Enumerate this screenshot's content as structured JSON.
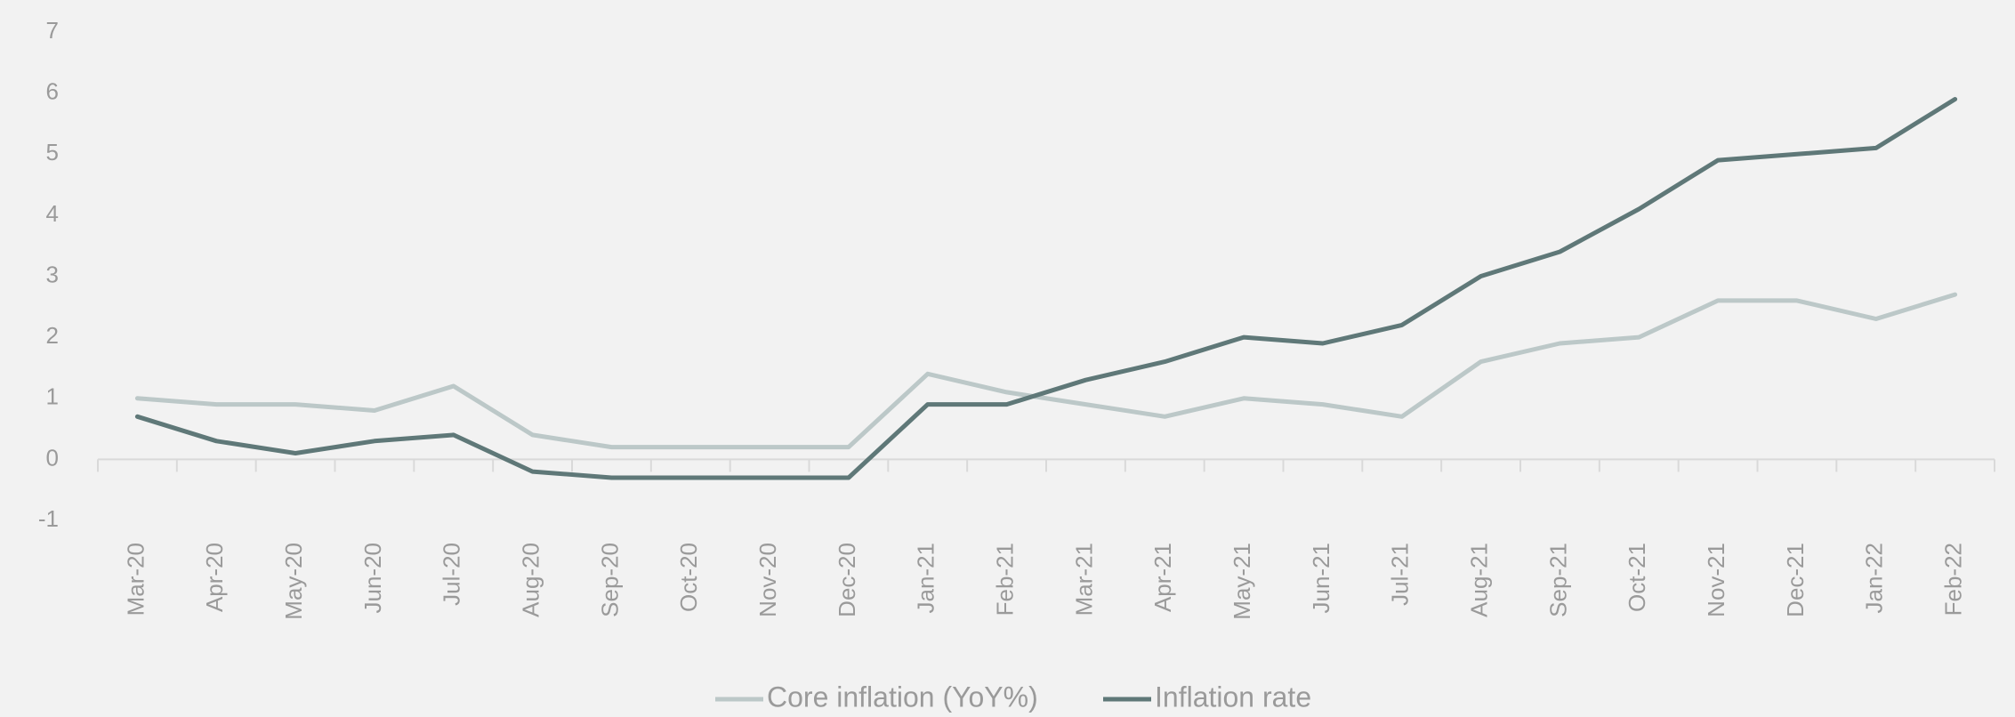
{
  "chart_data": {
    "type": "line",
    "categories": [
      "Mar-20",
      "Apr-20",
      "May-20",
      "Jun-20",
      "Jul-20",
      "Aug-20",
      "Sep-20",
      "Oct-20",
      "Nov-20",
      "Dec-20",
      "Jan-21",
      "Feb-21",
      "Mar-21",
      "Apr-21",
      "May-21",
      "Jun-21",
      "Jul-21",
      "Aug-21",
      "Sep-21",
      "Oct-21",
      "Nov-21",
      "Dec-21",
      "Jan-22",
      "Feb-22"
    ],
    "series": [
      {
        "name": "Core inflation (YoY%)",
        "color": "#bcc8c8",
        "values": [
          1.0,
          0.9,
          0.9,
          0.8,
          1.2,
          0.4,
          0.2,
          0.2,
          0.2,
          0.2,
          1.4,
          1.1,
          0.9,
          0.7,
          1.0,
          0.9,
          0.7,
          1.6,
          1.9,
          2.0,
          2.6,
          2.6,
          2.3,
          2.7
        ]
      },
      {
        "name": "Inflation rate",
        "color": "#5f7878",
        "values": [
          0.7,
          0.3,
          0.1,
          0.3,
          0.4,
          -0.2,
          -0.3,
          -0.3,
          -0.3,
          -0.3,
          0.9,
          0.9,
          1.3,
          1.6,
          2.0,
          1.9,
          2.2,
          3.0,
          3.4,
          4.1,
          4.9,
          5.0,
          5.1,
          5.9
        ]
      }
    ],
    "ylim": [
      -1,
      7
    ],
    "yticks": [
      -1,
      0,
      1,
      2,
      3,
      4,
      5,
      6,
      7
    ],
    "grid": false,
    "legend": "bottom"
  }
}
